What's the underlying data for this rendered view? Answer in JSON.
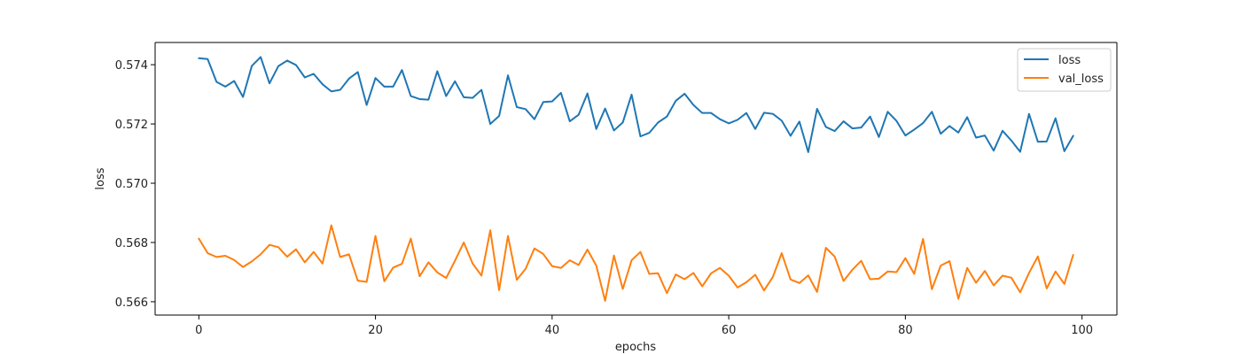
{
  "chart_data": {
    "type": "line",
    "title": "",
    "xlabel": "epochs",
    "ylabel": "loss",
    "xlim": [
      -4.95,
      103.95
    ],
    "ylim": [
      0.56555,
      0.57475
    ],
    "xticks": [
      0,
      20,
      40,
      60,
      80,
      100
    ],
    "yticks": [
      0.566,
      0.568,
      0.57,
      0.572,
      0.574
    ],
    "ytick_format": 3,
    "grid": false,
    "legend_position": "top-right",
    "series": [
      {
        "name": "loss",
        "color": "#1f77b4",
        "x": [
          0,
          1,
          2,
          3,
          4,
          5,
          6,
          7,
          8,
          9,
          10,
          11,
          12,
          13,
          14,
          15,
          16,
          17,
          18,
          19,
          20,
          21,
          22,
          23,
          24,
          25,
          26,
          27,
          28,
          29,
          30,
          31,
          32,
          33,
          34,
          35,
          36,
          37,
          38,
          39,
          40,
          41,
          42,
          43,
          44,
          45,
          46,
          47,
          48,
          49,
          50,
          51,
          52,
          53,
          54,
          55,
          56,
          57,
          58,
          59,
          60,
          61,
          62,
          63,
          64,
          65,
          66,
          67,
          68,
          69,
          70,
          71,
          72,
          73,
          74,
          75,
          76,
          77,
          78,
          79,
          80,
          81,
          82,
          83,
          84,
          85,
          86,
          87,
          88,
          89,
          90,
          91,
          92,
          93,
          94,
          95,
          96,
          97,
          98,
          99
        ],
        "values": [
          0.57422,
          0.57419,
          0.57342,
          0.57326,
          0.57345,
          0.57291,
          0.57396,
          0.57426,
          0.57337,
          0.57395,
          0.57414,
          0.57399,
          0.57357,
          0.57369,
          0.57334,
          0.5731,
          0.57315,
          0.57353,
          0.57375,
          0.57264,
          0.57355,
          0.57326,
          0.57326,
          0.57382,
          0.57294,
          0.57284,
          0.57282,
          0.57378,
          0.57294,
          0.57344,
          0.5729,
          0.57288,
          0.57315,
          0.572,
          0.57227,
          0.57364,
          0.57257,
          0.5725,
          0.57216,
          0.57274,
          0.57276,
          0.57305,
          0.57209,
          0.57231,
          0.57303,
          0.57183,
          0.57252,
          0.57178,
          0.57205,
          0.57299,
          0.57158,
          0.5717,
          0.57205,
          0.57225,
          0.57278,
          0.57302,
          0.57264,
          0.57237,
          0.57237,
          0.57216,
          0.57202,
          0.57214,
          0.57237,
          0.57183,
          0.57238,
          0.57234,
          0.57211,
          0.5716,
          0.57208,
          0.57105,
          0.57251,
          0.5719,
          0.57176,
          0.57209,
          0.57185,
          0.57188,
          0.57225,
          0.57156,
          0.57241,
          0.5721,
          0.57161,
          0.57181,
          0.57203,
          0.57241,
          0.57167,
          0.57193,
          0.57171,
          0.57223,
          0.57154,
          0.57161,
          0.5711,
          0.57177,
          0.57144,
          0.57106,
          0.57234,
          0.5714,
          0.57141,
          0.57219,
          0.57108,
          0.5716
        ]
      },
      {
        "name": "val_loss",
        "color": "#ff7f0e",
        "x": [
          0,
          1,
          2,
          3,
          4,
          5,
          6,
          7,
          8,
          9,
          10,
          11,
          12,
          13,
          14,
          15,
          16,
          17,
          18,
          19,
          20,
          21,
          22,
          23,
          24,
          25,
          26,
          27,
          28,
          29,
          30,
          31,
          32,
          33,
          34,
          35,
          36,
          37,
          38,
          39,
          40,
          41,
          42,
          43,
          44,
          45,
          46,
          47,
          48,
          49,
          50,
          51,
          52,
          53,
          54,
          55,
          56,
          57,
          58,
          59,
          60,
          61,
          62,
          63,
          64,
          65,
          66,
          67,
          68,
          69,
          70,
          71,
          72,
          73,
          74,
          75,
          76,
          77,
          78,
          79,
          80,
          81,
          82,
          83,
          84,
          85,
          86,
          87,
          88,
          89,
          90,
          91,
          92,
          93,
          94,
          95,
          96,
          97,
          98,
          99
        ],
        "values": [
          0.56813,
          0.56764,
          0.56751,
          0.56755,
          0.56741,
          0.56717,
          0.56736,
          0.5676,
          0.56792,
          0.56784,
          0.56752,
          0.56777,
          0.56733,
          0.56768,
          0.56729,
          0.56858,
          0.56751,
          0.5676,
          0.56671,
          0.56667,
          0.56822,
          0.56669,
          0.56715,
          0.56728,
          0.56813,
          0.56686,
          0.56733,
          0.56699,
          0.5668,
          0.56738,
          0.568,
          0.56729,
          0.56688,
          0.56841,
          0.56639,
          0.56822,
          0.56674,
          0.56711,
          0.5678,
          0.56761,
          0.5672,
          0.56714,
          0.5674,
          0.56724,
          0.56776,
          0.56722,
          0.56603,
          0.56756,
          0.56643,
          0.5674,
          0.56768,
          0.56694,
          0.56696,
          0.56629,
          0.56692,
          0.56676,
          0.56697,
          0.56652,
          0.56696,
          0.56714,
          0.56688,
          0.56648,
          0.56666,
          0.56691,
          0.56638,
          0.56684,
          0.56764,
          0.56675,
          0.56663,
          0.56689,
          0.56633,
          0.56782,
          0.56752,
          0.5667,
          0.56708,
          0.56738,
          0.56676,
          0.56678,
          0.56702,
          0.567,
          0.56747,
          0.56694,
          0.56812,
          0.56642,
          0.56722,
          0.56737,
          0.5661,
          0.56714,
          0.56664,
          0.56704,
          0.56655,
          0.56688,
          0.56681,
          0.56632,
          0.56697,
          0.56753,
          0.56645,
          0.56702,
          0.5666,
          0.56758
        ]
      }
    ]
  }
}
